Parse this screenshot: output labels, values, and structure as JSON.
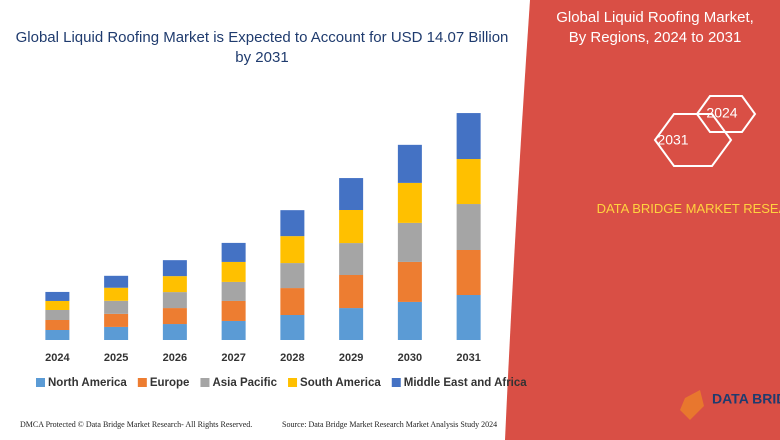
{
  "chart_data": {
    "type": "stacked_bar",
    "title": "Global Liquid Roofing Market is Expected to Account for USD 14.07 Billion by 2031",
    "categories": [
      "2024",
      "2025",
      "2026",
      "2027",
      "2028",
      "2029",
      "2030",
      "2031"
    ],
    "series": [
      {
        "name": "North America",
        "color": "#5b9bd5",
        "values": [
          0.62,
          0.81,
          0.99,
          1.18,
          1.55,
          1.98,
          2.36,
          2.79
        ]
      },
      {
        "name": "Europe",
        "color": "#ed7d31",
        "values": [
          0.62,
          0.81,
          0.99,
          1.24,
          1.67,
          2.05,
          2.48,
          2.79
        ]
      },
      {
        "name": "Asia Pacific",
        "color": "#a5a5a5",
        "values": [
          0.62,
          0.81,
          0.99,
          1.18,
          1.55,
          1.98,
          2.42,
          2.85
        ]
      },
      {
        "name": "South America",
        "color": "#ffc000",
        "values": [
          0.56,
          0.81,
          0.99,
          1.24,
          1.67,
          2.05,
          2.48,
          2.79
        ]
      },
      {
        "name": "Middle East and Africa",
        "color": "#4472c4",
        "values": [
          0.56,
          0.74,
          0.99,
          1.18,
          1.61,
          1.98,
          2.36,
          2.85
        ]
      }
    ],
    "ylim": [
      0,
      15.5
    ]
  },
  "panel": {
    "title": "Global Liquid Roofing Market, By Regions, 2024 to 2031",
    "hex_start": "2024",
    "hex_end": "2031",
    "brand": "DATA BRIDGE MARKET RESEARCH"
  },
  "footer": {
    "left": "DMCA Protected © Data Bridge Market Research-  All Rights Reserved.",
    "right": "Source: Data Bridge Market Research  Market Analysis Study 2024",
    "logo": "DATA BRIDGE"
  }
}
